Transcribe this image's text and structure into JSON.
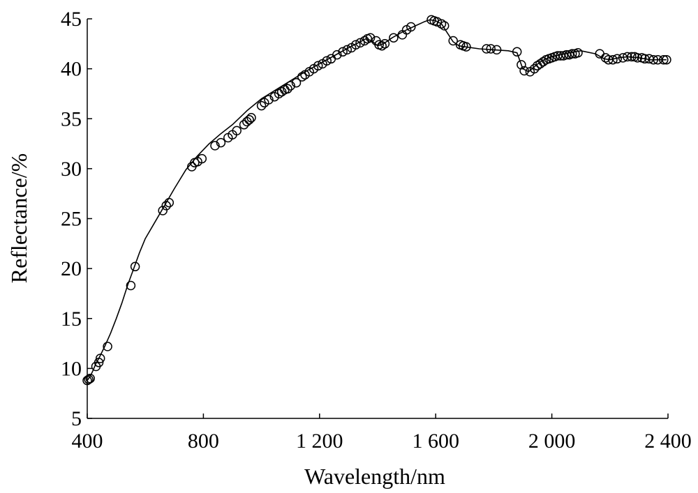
{
  "chart_data": {
    "type": "line",
    "title": "",
    "xlabel": "Wavelength/nm",
    "ylabel": "Reflectance/%",
    "xlim": [
      400,
      2400
    ],
    "ylim": [
      5,
      45
    ],
    "grid": false,
    "legend": "none",
    "x_ticks": [
      400,
      800,
      1200,
      1600,
      2000,
      2400
    ],
    "x_tick_labels": [
      "400",
      "800",
      "1 200",
      "1 600",
      "2 000",
      "2 400"
    ],
    "y_ticks": [
      5,
      10,
      15,
      20,
      25,
      30,
      35,
      40,
      45
    ],
    "y_tick_labels": [
      "5",
      "10",
      "15",
      "20",
      "25",
      "30",
      "35",
      "40",
      "45"
    ],
    "curve": {
      "x": [
        400,
        410,
        420,
        430,
        440,
        460,
        480,
        500,
        520,
        540,
        560,
        580,
        600,
        630,
        660,
        700,
        740,
        780,
        820,
        860,
        900,
        950,
        1000,
        1050,
        1100,
        1150,
        1200,
        1250,
        1300,
        1340,
        1360,
        1380,
        1400,
        1420,
        1450,
        1480,
        1500,
        1530,
        1560,
        1580,
        1600,
        1620,
        1640,
        1660,
        1680,
        1700,
        1750,
        1800,
        1850,
        1880,
        1900,
        1920,
        1940,
        1960,
        1980,
        2000,
        2030,
        2060,
        2100,
        2150,
        2180,
        2200,
        2230,
        2260,
        2300,
        2340,
        2380,
        2395
      ],
      "y": [
        8.8,
        9.2,
        9.8,
        10.5,
        11.0,
        12.2,
        13.5,
        15.0,
        16.6,
        18.4,
        20.0,
        21.6,
        23.0,
        24.5,
        26.0,
        28.0,
        29.9,
        31.3,
        32.5,
        33.5,
        34.4,
        35.8,
        37.0,
        37.9,
        38.8,
        39.7,
        40.5,
        41.3,
        42.1,
        42.7,
        43.0,
        42.8,
        42.3,
        42.5,
        43.1,
        43.6,
        43.9,
        44.3,
        44.7,
        44.9,
        44.8,
        44.5,
        43.6,
        42.7,
        42.3,
        42.2,
        42.0,
        41.9,
        41.8,
        41.6,
        40.0,
        39.7,
        40.2,
        40.7,
        41.0,
        41.2,
        41.4,
        41.6,
        41.8,
        41.5,
        41.0,
        40.9,
        41.1,
        41.2,
        41.1,
        40.9,
        40.9,
        40.9
      ]
    },
    "markers": {
      "x": [
        400,
        405,
        410,
        430,
        440,
        445,
        470,
        550,
        565,
        660,
        672,
        682,
        760,
        770,
        780,
        795,
        840,
        860,
        885,
        900,
        915,
        940,
        950,
        958,
        965,
        1000,
        1010,
        1025,
        1045,
        1060,
        1070,
        1080,
        1090,
        1100,
        1120,
        1140,
        1150,
        1165,
        1180,
        1195,
        1210,
        1225,
        1240,
        1260,
        1280,
        1295,
        1310,
        1325,
        1340,
        1355,
        1365,
        1375,
        1395,
        1405,
        1415,
        1425,
        1455,
        1485,
        1500,
        1515,
        1585,
        1595,
        1605,
        1620,
        1630,
        1660,
        1685,
        1695,
        1705,
        1775,
        1790,
        1810,
        1880,
        1895,
        1905,
        1925,
        1940,
        1950,
        1960,
        1970,
        1980,
        1990,
        2000,
        2010,
        2020,
        2030,
        2040,
        2050,
        2060,
        2070,
        2080,
        2090,
        2165,
        2185,
        2195,
        2210,
        2225,
        2245,
        2260,
        2275,
        2285,
        2295,
        2310,
        2320,
        2335,
        2350,
        2365,
        2385,
        2395
      ],
      "y": [
        8.8,
        8.9,
        9.0,
        10.2,
        10.6,
        11.0,
        12.2,
        18.3,
        20.2,
        25.8,
        26.3,
        26.6,
        30.2,
        30.6,
        30.7,
        31.0,
        32.3,
        32.6,
        33.1,
        33.4,
        33.8,
        34.4,
        34.7,
        34.9,
        35.1,
        36.3,
        36.6,
        36.9,
        37.2,
        37.5,
        37.7,
        37.9,
        38.0,
        38.3,
        38.6,
        39.2,
        39.4,
        39.7,
        40.0,
        40.3,
        40.5,
        40.8,
        41.0,
        41.4,
        41.7,
        41.9,
        42.1,
        42.4,
        42.6,
        42.8,
        43.0,
        43.1,
        42.8,
        42.4,
        42.3,
        42.5,
        43.1,
        43.4,
        43.9,
        44.2,
        44.9,
        44.8,
        44.7,
        44.5,
        44.3,
        42.8,
        42.4,
        42.3,
        42.2,
        42.0,
        42.0,
        41.9,
        41.7,
        40.4,
        39.8,
        39.7,
        40.0,
        40.3,
        40.5,
        40.7,
        40.9,
        41.0,
        41.1,
        41.2,
        41.3,
        41.3,
        41.3,
        41.4,
        41.4,
        41.5,
        41.5,
        41.6,
        41.5,
        41.1,
        40.9,
        40.9,
        41.0,
        41.1,
        41.2,
        41.2,
        41.2,
        41.1,
        41.1,
        41.0,
        41.0,
        40.9,
        40.9,
        40.9,
        40.9
      ]
    }
  }
}
